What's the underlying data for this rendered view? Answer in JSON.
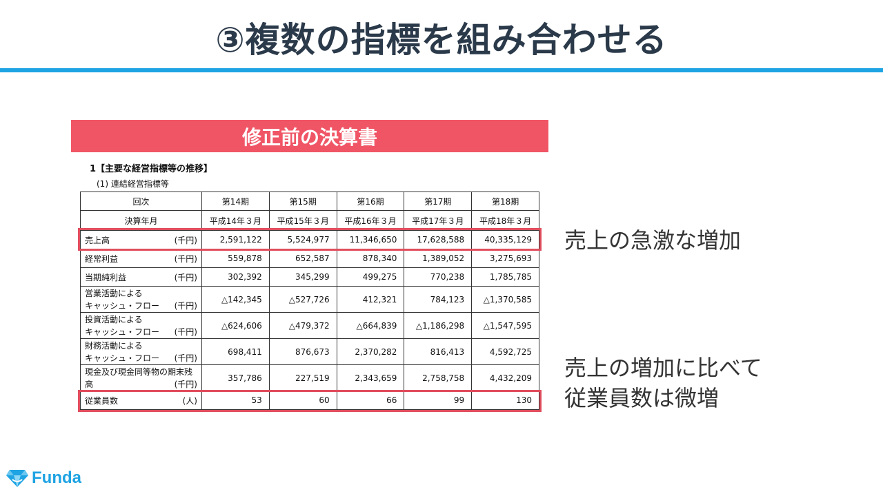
{
  "title": "③複数の指標を組み合わせる",
  "banner": "修正前の決算書",
  "doc": {
    "heading": "1【主要な経営指標等の推移】",
    "subheading": "(1) 連結経営指標等"
  },
  "table": {
    "header_label": "回次",
    "periods": [
      "第14期",
      "第15期",
      "第16期",
      "第17期",
      "第18期"
    ],
    "date_label": "決算年月",
    "dates": [
      "平成14年３月",
      "平成15年３月",
      "平成16年３月",
      "平成17年３月",
      "平成18年３月"
    ],
    "rows": [
      {
        "label": "売上高",
        "unit": "(千円)",
        "values": [
          "2,591,122",
          "5,524,977",
          "11,346,650",
          "17,628,588",
          "40,335,129"
        ]
      },
      {
        "label": "経常利益",
        "unit": "(千円)",
        "values": [
          "559,878",
          "652,587",
          "878,340",
          "1,389,052",
          "3,275,693"
        ]
      },
      {
        "label": "当期純利益",
        "unit": "(千円)",
        "values": [
          "302,392",
          "345,299",
          "499,275",
          "770,238",
          "1,785,785"
        ]
      },
      {
        "label1": "営業活動による",
        "label2": "キャッシュ・フロー",
        "unit": "(千円)",
        "values": [
          "△142,345",
          "△527,726",
          "412,321",
          "784,123",
          "△1,370,585"
        ]
      },
      {
        "label1": "投資活動による",
        "label2": "キャッシュ・フロー",
        "unit": "(千円)",
        "values": [
          "△624,606",
          "△479,372",
          "△664,839",
          "△1,186,298",
          "△1,547,595"
        ]
      },
      {
        "label1": "財務活動による",
        "label2": "キャッシュ・フロー",
        "unit": "(千円)",
        "values": [
          "698,411",
          "876,673",
          "2,370,282",
          "816,413",
          "4,592,725"
        ]
      },
      {
        "label1": "現金及び現金同等物の期末残",
        "label2": "高",
        "unit": "(千円)",
        "values": [
          "357,786",
          "227,519",
          "2,343,659",
          "2,758,758",
          "4,432,209"
        ]
      },
      {
        "label": "従業員数",
        "unit": "(人)",
        "values": [
          "53",
          "60",
          "66",
          "99",
          "130"
        ]
      }
    ]
  },
  "notes": {
    "note1": "売上の急激な増加",
    "note2_line1": "売上の増加に比べて",
    "note2_line2": "従業員数は微増"
  },
  "logo": {
    "text": "Funda",
    "icon": "diamond-icon",
    "color": "#1ea3e3"
  },
  "colors": {
    "accent": "#1ea3e3",
    "banner": "#f05566",
    "highlight": "#e04d5d"
  }
}
